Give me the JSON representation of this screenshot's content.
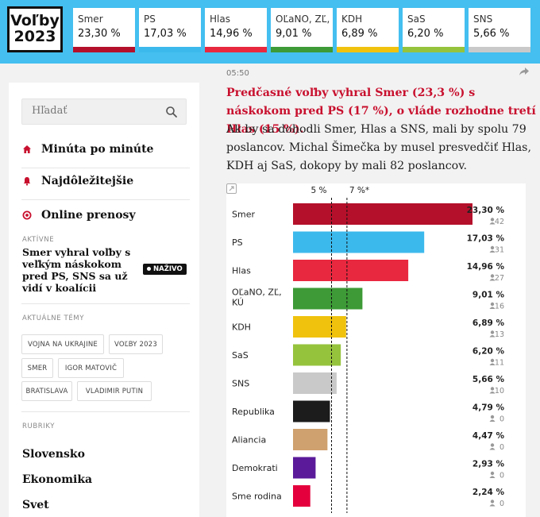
{
  "logo": {
    "line1": "Voľby",
    "line2": "2023"
  },
  "ticker": [
    {
      "name": "Smer",
      "value": "23,30 %",
      "color": "#b5102b"
    },
    {
      "name": "PS",
      "value": "17,03 %",
      "color": "#3cb9ec"
    },
    {
      "name": "Hlas",
      "value": "14,96 %",
      "color": "#e8283f"
    },
    {
      "name": "OĽaNO, ZĽ, K",
      "value": "9,01 %",
      "color": "#3d9a36"
    },
    {
      "name": "KDH",
      "value": "6,89 %",
      "color": "#f0c20e"
    },
    {
      "name": "SaS",
      "value": "6,20 %",
      "color": "#96c33c"
    },
    {
      "name": "SNS",
      "value": "5,66 %",
      "color": "#c9c9c9"
    }
  ],
  "sidebar": {
    "search_placeholder": "Hľadať",
    "nav": [
      {
        "label": "Minúta po minúte",
        "icon": "home-icon"
      },
      {
        "label": "Najdôležitejšie",
        "icon": "bell-icon"
      },
      {
        "label": "Online prenosy",
        "icon": "live-circle-icon"
      }
    ],
    "active_label": "AKTÍVNE",
    "active_title": "Smer vyhral voľby s veľkým náskokom pred PS, SNS sa už vidí v koalícii",
    "live_badge": "NAŽIVO",
    "topics_label": "AKTUÁLNE TÉMY",
    "topics": [
      "VOJNA NA UKRAJINE",
      "VOĽBY 2023",
      "SMER",
      "IGOR MATOVIČ",
      "BRATISLAVA",
      "VLADIMIR PUTIN"
    ],
    "rubrics_label": "RUBRIKY",
    "rubrics": [
      "Slovensko",
      "Ekonomika",
      "Svet"
    ]
  },
  "article": {
    "time": "05:50",
    "headline": "Predčasné voľby vyhral Smer (23,3 %) s náskokom pred PS (17 %), o vláde rozhodne tretí Hlas (15 %).",
    "body": "Ak by sa dohodli Smer, Hlas a SNS, mali by spolu 79 poslancov. Michal Šimečka by musel presvedčiť Hlas, KDH aj SaS, dokopy by mali 82 poslancov."
  },
  "chart_data": {
    "type": "bar",
    "orientation": "horizontal",
    "xlim": [
      0,
      23.3
    ],
    "threshold_lines": [
      {
        "value": 5,
        "label": "5 %"
      },
      {
        "value": 7,
        "label": "7 %*"
      }
    ],
    "categories": [
      "Smer",
      "PS",
      "Hlas",
      "OĽaNO, ZĽ, KÚ",
      "KDH",
      "SaS",
      "SNS",
      "Republika",
      "Aliancia",
      "Demokrati",
      "Sme rodina"
    ],
    "category_lines": [
      [
        "Smer"
      ],
      [
        "PS"
      ],
      [
        "Hlas"
      ],
      [
        "OĽaNO, ZĽ,",
        "KÚ"
      ],
      [
        "KDH"
      ],
      [
        "SaS"
      ],
      [
        "SNS"
      ],
      [
        "Republika"
      ],
      [
        "Aliancia"
      ],
      [
        "Demokrati"
      ],
      [
        "Sme rodina"
      ]
    ],
    "values": [
      23.3,
      17.03,
      14.96,
      9.01,
      6.89,
      6.2,
      5.66,
      4.79,
      4.47,
      2.93,
      2.24
    ],
    "value_labels": [
      "23,30 %",
      "17,03 %",
      "14,96 %",
      "9,01 %",
      "6,89 %",
      "6,20 %",
      "5,66 %",
      "4,79 %",
      "4,47 %",
      "2,93 %",
      "2,24 %"
    ],
    "seats": [
      "42",
      "31",
      "27",
      "16",
      "13",
      "11",
      "10",
      "0",
      "0",
      "0",
      "0"
    ],
    "colors": [
      "#b5102b",
      "#3cb9ec",
      "#e8283f",
      "#3d9a36",
      "#f0c20e",
      "#96c33c",
      "#c9c9c9",
      "#1c1c1c",
      "#cfa16e",
      "#5a1a9a",
      "#e4003c"
    ]
  }
}
